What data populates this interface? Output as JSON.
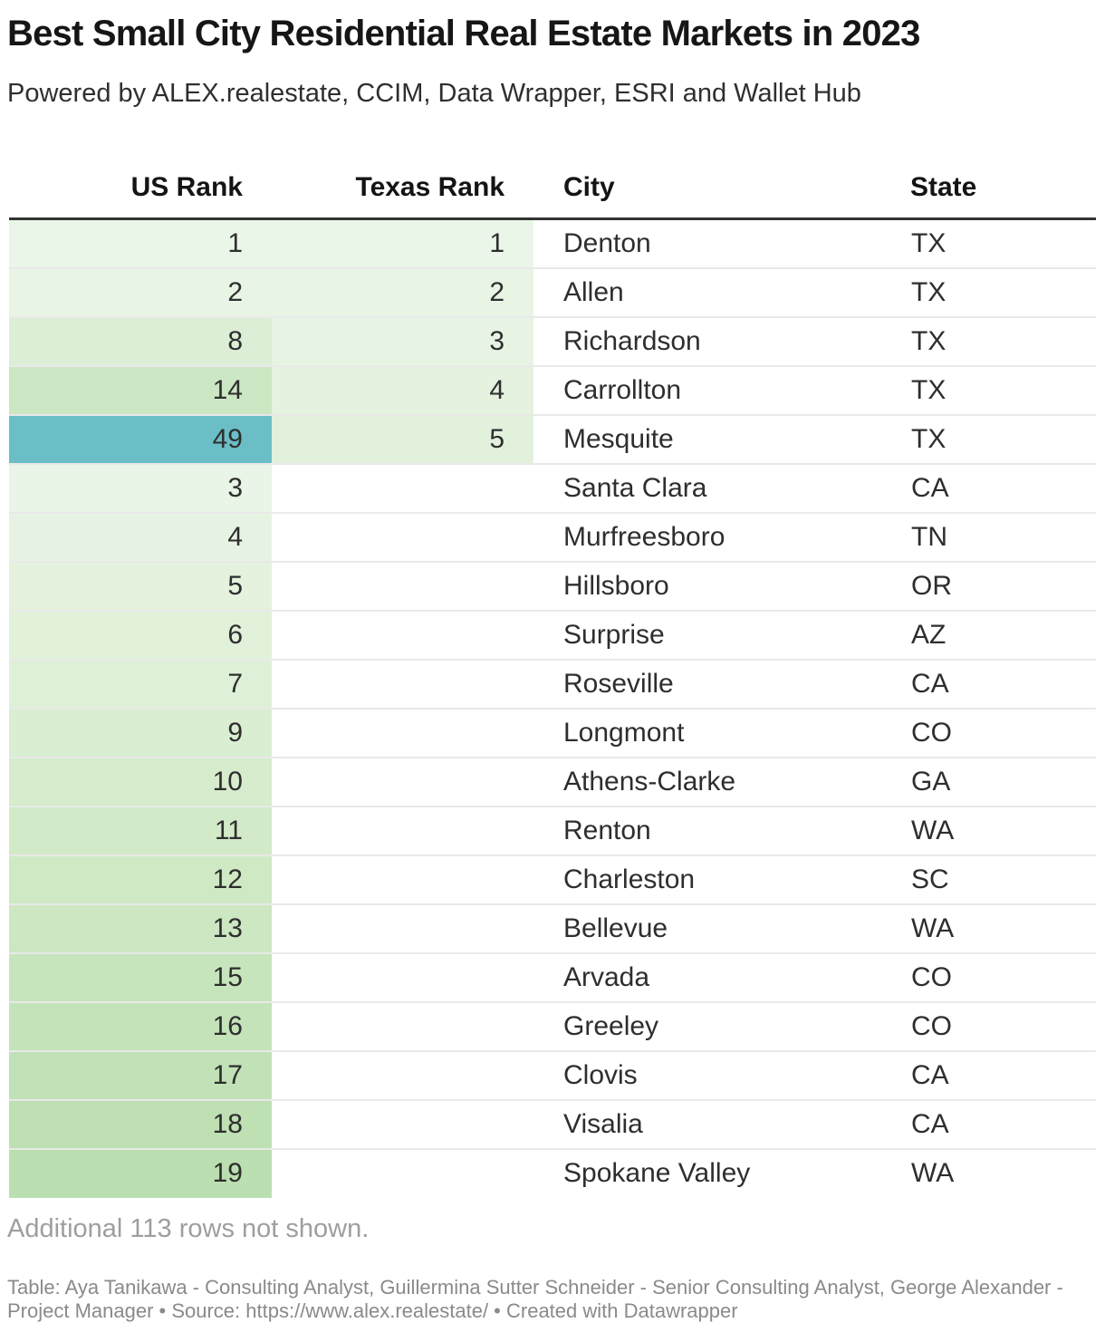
{
  "chart_data": {
    "type": "table",
    "title": "Best Small City Residential Real Estate Markets in 2023",
    "subtitle": "Powered by ALEX.realestate, CCIM, Data Wrapper, ESRI and Wallet Hub",
    "columns": [
      "US Rank",
      "Texas Rank",
      "City",
      "State"
    ],
    "rows": [
      {
        "us_rank": 1,
        "texas_rank": 1,
        "city": "Denton",
        "state": "TX",
        "us_rank_bg": "#eaf6e8",
        "texas_rank_bg": "#eaf6e8"
      },
      {
        "us_rank": 2,
        "texas_rank": 2,
        "city": "Allen",
        "state": "TX",
        "us_rank_bg": "#e8f5e5",
        "texas_rank_bg": "#e8f5e5"
      },
      {
        "us_rank": 8,
        "texas_rank": 3,
        "city": "Richardson",
        "state": "TX",
        "us_rank_bg": "#dcefd6",
        "texas_rank_bg": "#e7f4e3"
      },
      {
        "us_rank": 14,
        "texas_rank": 4,
        "city": "Carrollton",
        "state": "TX",
        "us_rank_bg": "#cbe7c3",
        "texas_rank_bg": "#e4f2df"
      },
      {
        "us_rank": 49,
        "texas_rank": 5,
        "city": "Mesquite",
        "state": "TX",
        "us_rank_bg": "#6bbec6",
        "texas_rank_bg": "#e2f1dc"
      },
      {
        "us_rank": 3,
        "texas_rank": "",
        "city": "Santa Clara",
        "state": "CA",
        "us_rank_bg": "#e9f5e6",
        "texas_rank_bg": ""
      },
      {
        "us_rank": 4,
        "texas_rank": "",
        "city": "Murfreesboro",
        "state": "TN",
        "us_rank_bg": "#e6f3e2",
        "texas_rank_bg": ""
      },
      {
        "us_rank": 5,
        "texas_rank": "",
        "city": "Hillsboro",
        "state": "OR",
        "us_rank_bg": "#e4f2de",
        "texas_rank_bg": ""
      },
      {
        "us_rank": 6,
        "texas_rank": "",
        "city": "Surprise",
        "state": "AZ",
        "us_rank_bg": "#e1f1da",
        "texas_rank_bg": ""
      },
      {
        "us_rank": 7,
        "texas_rank": "",
        "city": "Roseville",
        "state": "CA",
        "us_rank_bg": "#def0d7",
        "texas_rank_bg": ""
      },
      {
        "us_rank": 9,
        "texas_rank": "",
        "city": "Longmont",
        "state": "CO",
        "us_rank_bg": "#daeed2",
        "texas_rank_bg": ""
      },
      {
        "us_rank": 10,
        "texas_rank": "",
        "city": "Athens-Clarke",
        "state": "GA",
        "us_rank_bg": "#d6eccd",
        "texas_rank_bg": ""
      },
      {
        "us_rank": 11,
        "texas_rank": "",
        "city": "Renton",
        "state": "WA",
        "us_rank_bg": "#d3eac9",
        "texas_rank_bg": ""
      },
      {
        "us_rank": 12,
        "texas_rank": "",
        "city": "Charleston",
        "state": "SC",
        "us_rank_bg": "#cfe9c5",
        "texas_rank_bg": ""
      },
      {
        "us_rank": 13,
        "texas_rank": "",
        "city": "Bellevue",
        "state": "WA",
        "us_rank_bg": "#cce7c2",
        "texas_rank_bg": ""
      },
      {
        "us_rank": 15,
        "texas_rank": "",
        "city": "Arvada",
        "state": "CO",
        "us_rank_bg": "#c7e5bc",
        "texas_rank_bg": ""
      },
      {
        "us_rank": 16,
        "texas_rank": "",
        "city": "Greeley",
        "state": "CO",
        "us_rank_bg": "#c4e3b9",
        "texas_rank_bg": ""
      },
      {
        "us_rank": 17,
        "texas_rank": "",
        "city": "Clovis",
        "state": "CA",
        "us_rank_bg": "#c1e2b6",
        "texas_rank_bg": ""
      },
      {
        "us_rank": 18,
        "texas_rank": "",
        "city": "Visalia",
        "state": "CA",
        "us_rank_bg": "#bee0b3",
        "texas_rank_bg": ""
      },
      {
        "us_rank": 19,
        "texas_rank": "",
        "city": "Spokane Valley",
        "state": "WA",
        "us_rank_bg": "#bbdfb0",
        "texas_rank_bg": ""
      }
    ],
    "note": "Additional 113 rows not shown.",
    "footer": "Table: Aya Tanikawa - Consulting Analyst, Guillermina Sutter Schneider - Senior Consulting Analyst, George Alexander - Project Manager • Source: https://www.alex.realestate/ • Created with Datawrapper",
    "layout_hints": {
      "heatmap_columns": [
        "US Rank",
        "Texas Rank"
      ],
      "heatmap_scale_low_color": "#eaf6e8",
      "heatmap_scale_high_color": "#bbdfb0",
      "heatmap_outlier_color": "#6bbec6",
      "header_rule_color": "#333333",
      "row_divider_color": "#e0e0e0",
      "note_text_color": "#9e9e9e",
      "footer_text_color": "#8a8a8a",
      "grid": "horizontal-only",
      "legend": "none"
    }
  }
}
